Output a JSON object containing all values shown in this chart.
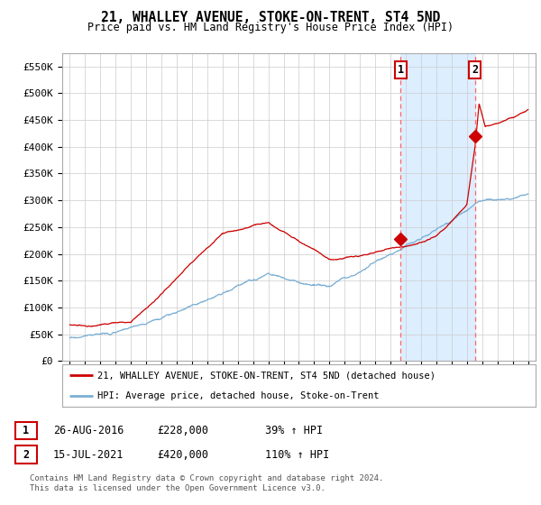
{
  "title": "21, WHALLEY AVENUE, STOKE-ON-TRENT, ST4 5ND",
  "subtitle": "Price paid vs. HM Land Registry's House Price Index (HPI)",
  "ylim": [
    0,
    575000
  ],
  "yticks": [
    0,
    50000,
    100000,
    150000,
    200000,
    250000,
    300000,
    350000,
    400000,
    450000,
    500000,
    550000
  ],
  "ytick_labels": [
    "£0",
    "£50K",
    "£100K",
    "£150K",
    "£200K",
    "£250K",
    "£300K",
    "£350K",
    "£400K",
    "£450K",
    "£500K",
    "£550K"
  ],
  "sale1_date": 2016.65,
  "sale1_price": 228000,
  "sale1_label": "1",
  "sale2_date": 2021.54,
  "sale2_price": 420000,
  "sale2_label": "2",
  "legend_property": "21, WHALLEY AVENUE, STOKE-ON-TRENT, ST4 5ND (detached house)",
  "legend_hpi": "HPI: Average price, detached house, Stoke-on-Trent",
  "table_row1": [
    "1",
    "26-AUG-2016",
    "£228,000",
    "39% ↑ HPI"
  ],
  "table_row2": [
    "2",
    "15-JUL-2021",
    "£420,000",
    "110% ↑ HPI"
  ],
  "footnote": "Contains HM Land Registry data © Crown copyright and database right 2024.\nThis data is licensed under the Open Government Licence v3.0.",
  "property_color": "#cc0000",
  "hpi_color": "#7bafd4",
  "shade_color": "#ddeeff",
  "grid_color": "#cccccc",
  "background_color": "#ffffff"
}
